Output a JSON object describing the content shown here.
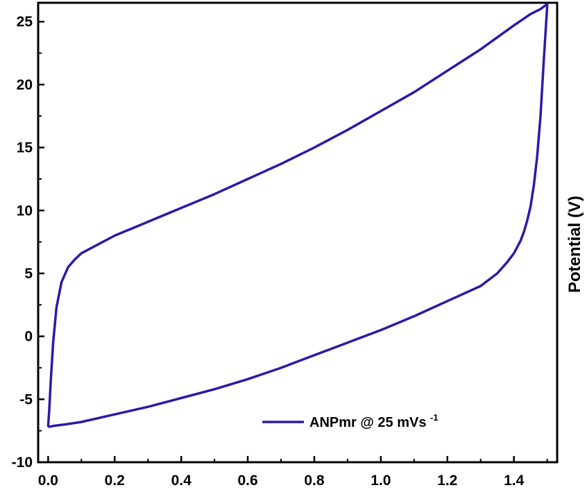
{
  "chart_data": {
    "type": "line",
    "ylabel": "Potential (V)",
    "xlim": [
      -0.03,
      1.53
    ],
    "ylim": [
      -10,
      26.5
    ],
    "x_ticks": [
      0.0,
      0.2,
      0.4,
      0.6,
      0.8,
      1.0,
      1.2,
      1.4
    ],
    "x_tick_labels": [
      "0.0",
      "0.2",
      "0.4",
      "0.6",
      "0.8",
      "1.0",
      "1.2",
      "1.4"
    ],
    "y_ticks": [
      25,
      20,
      15,
      10,
      5,
      0,
      -5,
      -10
    ],
    "y_tick_labels": [
      "25",
      "20",
      "15",
      "10",
      "5",
      "0",
      "-5",
      "-10"
    ],
    "grid": false,
    "legend_position": "bottom-right",
    "line_color": "#2a1aa8",
    "series": [
      {
        "name": "ANPmr @ 25 mVs",
        "name_superscript": "-1",
        "x": [
          0.0,
          0.003,
          0.008,
          0.015,
          0.025,
          0.04,
          0.06,
          0.08,
          0.1,
          0.15,
          0.2,
          0.3,
          0.4,
          0.5,
          0.6,
          0.7,
          0.8,
          0.9,
          1.0,
          1.1,
          1.2,
          1.3,
          1.4,
          1.45,
          1.48,
          1.5,
          1.5,
          1.49,
          1.48,
          1.47,
          1.46,
          1.45,
          1.44,
          1.43,
          1.42,
          1.41,
          1.4,
          1.38,
          1.35,
          1.3,
          1.2,
          1.1,
          1.0,
          0.9,
          0.8,
          0.7,
          0.6,
          0.5,
          0.4,
          0.3,
          0.2,
          0.1,
          0.05,
          0.02,
          0.01,
          0.003,
          0.0
        ],
        "y": [
          -7.1,
          -6.0,
          -3.5,
          -0.5,
          2.3,
          4.3,
          5.5,
          6.1,
          6.6,
          7.3,
          8.0,
          9.1,
          10.2,
          11.3,
          12.5,
          13.7,
          15.0,
          16.4,
          17.9,
          19.4,
          21.1,
          22.8,
          24.7,
          25.6,
          26.0,
          26.4,
          26.2,
          22.0,
          17.5,
          14.3,
          12.0,
          10.3,
          9.2,
          8.3,
          7.6,
          7.1,
          6.6,
          5.9,
          5.0,
          4.0,
          2.8,
          1.6,
          0.5,
          -0.5,
          -1.5,
          -2.5,
          -3.4,
          -4.2,
          -4.9,
          -5.6,
          -6.2,
          -6.8,
          -7.0,
          -7.1,
          -7.15,
          -7.18,
          -7.1
        ]
      }
    ]
  }
}
